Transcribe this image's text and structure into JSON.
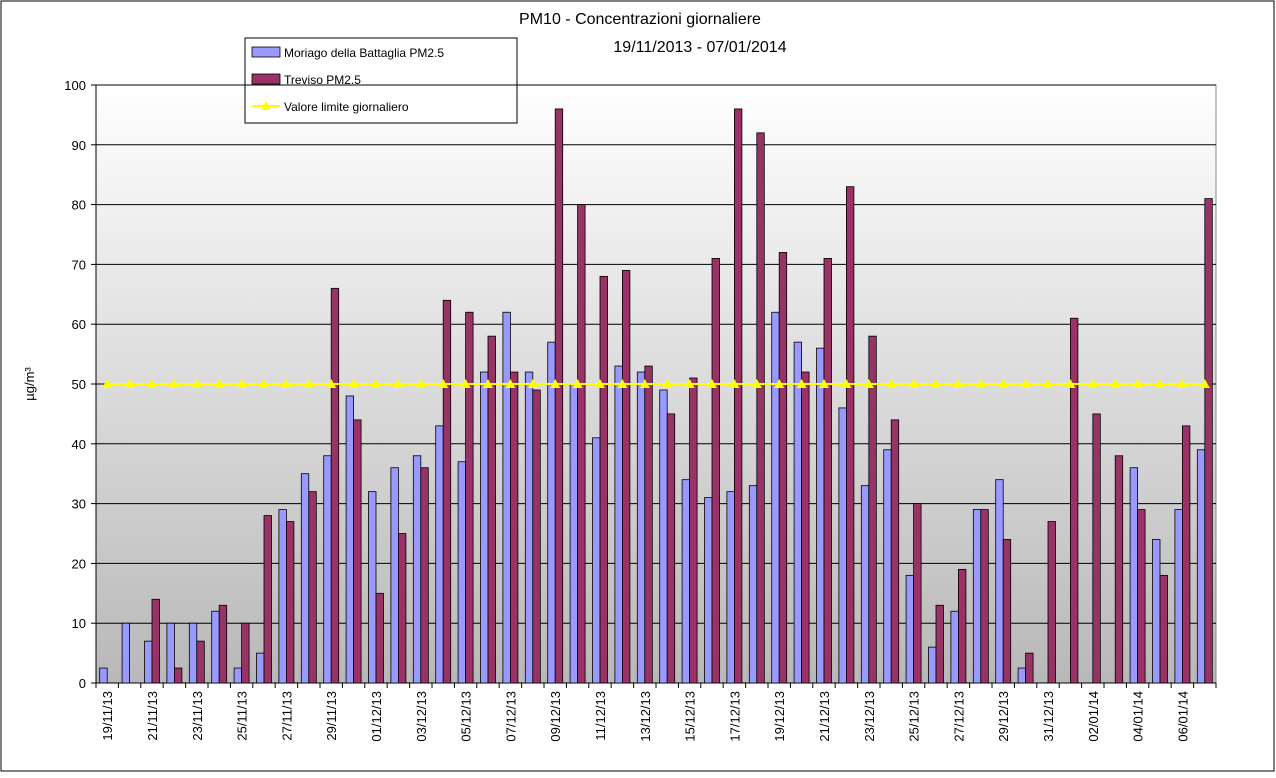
{
  "chart_data": {
    "type": "bar",
    "title": "PM10 - Concentrazioni giornaliere",
    "subtitle": "19/11/2013 - 07/01/2014",
    "y_label": "µg/m³",
    "categories": [
      "19/11/13",
      null,
      "21/11/13",
      null,
      "23/11/13",
      null,
      "25/11/13",
      null,
      "27/11/13",
      null,
      "29/11/13",
      null,
      "01/12/13",
      null,
      "03/12/13",
      null,
      "05/12/13",
      null,
      "07/12/13",
      null,
      "09/12/13",
      null,
      "11/12/13",
      null,
      "13/12/13",
      null,
      "15/12/13",
      null,
      "17/12/13",
      null,
      "19/12/13",
      null,
      "21/12/13",
      null,
      "23/12/13",
      null,
      "25/12/13",
      null,
      "27/12/13",
      null,
      "29/12/13",
      null,
      "31/12/13",
      null,
      "02/01/14",
      null,
      "04/01/14",
      null,
      "06/01/14",
      null
    ],
    "series": [
      {
        "name": "Moriago della Battaglia PM2.5",
        "type": "bar",
        "color": "#9999ff",
        "values": [
          2.5,
          10,
          7,
          10,
          10,
          12,
          2.5,
          5,
          29,
          35,
          38,
          48,
          32,
          36,
          38,
          43,
          37,
          52,
          62,
          52,
          57,
          50,
          41,
          53,
          52,
          49,
          34,
          31,
          32,
          33,
          62,
          57,
          56,
          46,
          33,
          39,
          18,
          6,
          12,
          29,
          34,
          2.5,
          null,
          null,
          null,
          null,
          36,
          24,
          29,
          39
        ]
      },
      {
        "name": "Treviso PM2.5",
        "type": "bar",
        "color": "#993366",
        "values": [
          null,
          null,
          14,
          2.5,
          7,
          13,
          10,
          28,
          27,
          32,
          66,
          44,
          15,
          25,
          36,
          64,
          62,
          58,
          52,
          49,
          96,
          80,
          68,
          69,
          53,
          45,
          51,
          71,
          96,
          92,
          72,
          52,
          71,
          83,
          58,
          44,
          30,
          13,
          19,
          29,
          24,
          5,
          27,
          61,
          45,
          38,
          29,
          18,
          43,
          81
        ]
      },
      {
        "name": "Valore limite giornaliero",
        "type": "line",
        "color": "#ffff00",
        "values": [
          50,
          50,
          50,
          50,
          50,
          50,
          50,
          50,
          50,
          50,
          50,
          50,
          50,
          50,
          50,
          50,
          50,
          50,
          50,
          50,
          50,
          50,
          50,
          50,
          50,
          50,
          50,
          50,
          50,
          50,
          50,
          50,
          50,
          50,
          50,
          50,
          50,
          50,
          50,
          50,
          50,
          50,
          50,
          50,
          50,
          50,
          50,
          50,
          50,
          50
        ]
      }
    ],
    "ylim": [
      0,
      100
    ],
    "yticks": [
      0,
      10,
      20,
      30,
      40,
      50,
      60,
      70,
      80,
      90,
      100
    ],
    "grid": true
  }
}
